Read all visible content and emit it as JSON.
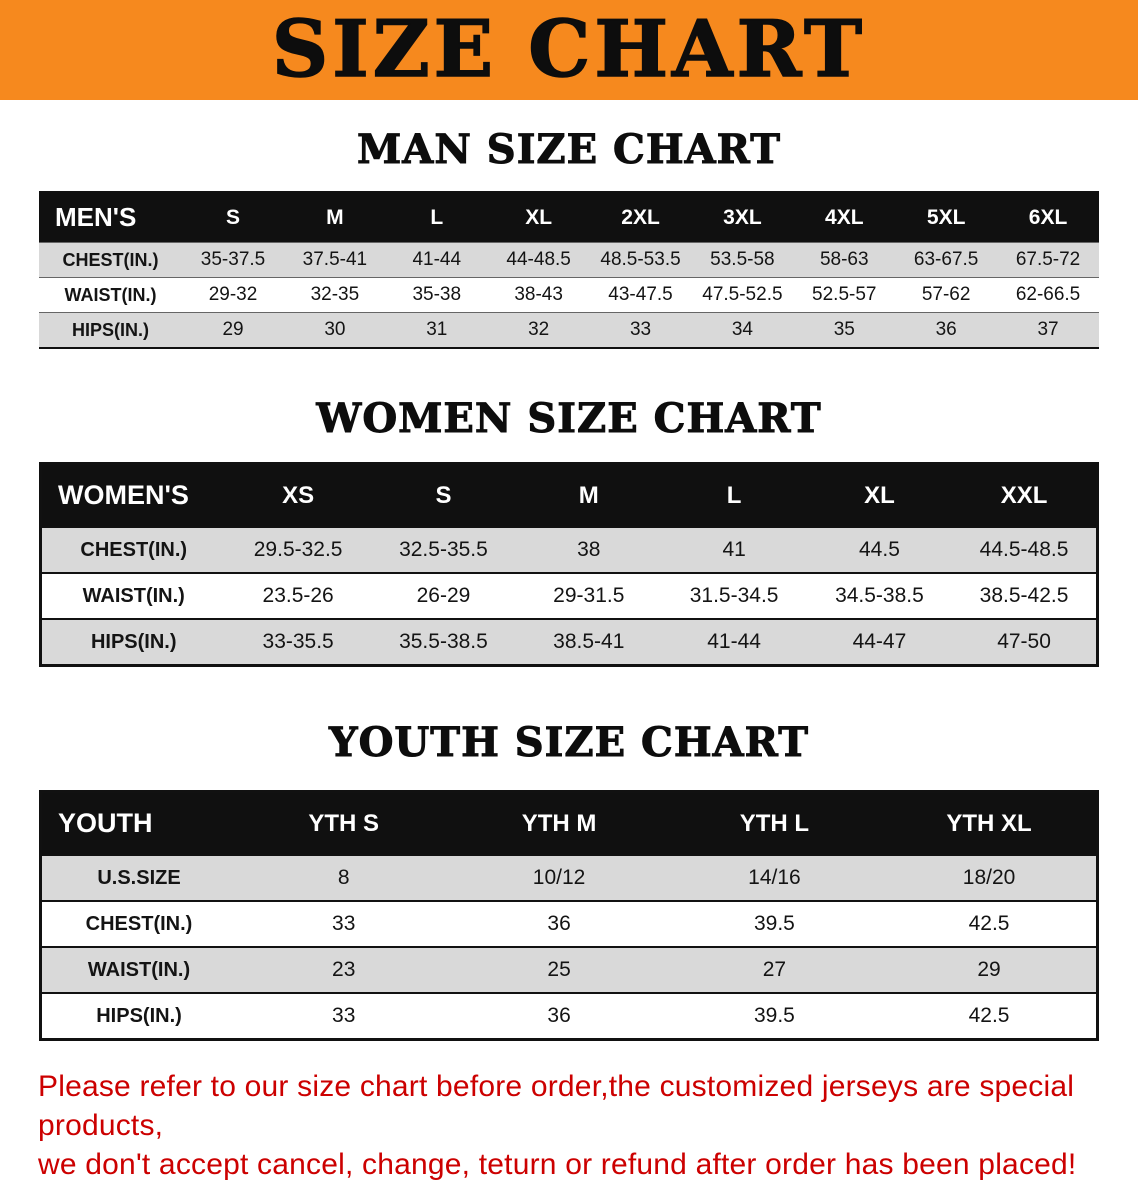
{
  "banner": {
    "title": "SIZE CHART"
  },
  "colors": {
    "banner_bg": "#F6891E",
    "header_bg": "#101010",
    "stripe": "#D9D9D9",
    "disclaimer": "#CC0000"
  },
  "sections": [
    {
      "id": "men",
      "heading": "MAN SIZE CHART",
      "table": {
        "header": [
          "MEN'S",
          "S",
          "M",
          "L",
          "XL",
          "2XL",
          "3XL",
          "4XL",
          "5XL",
          "6XL"
        ],
        "rows": [
          [
            "CHEST(IN.)",
            "35-37.5",
            "37.5-41",
            "41-44",
            "44-48.5",
            "48.5-53.5",
            "53.5-58",
            "58-63",
            "63-67.5",
            "67.5-72"
          ],
          [
            "WAIST(IN.)",
            "29-32",
            "32-35",
            "35-38",
            "38-43",
            "43-47.5",
            "47.5-52.5",
            "52.5-57",
            "57-62",
            "62-66.5"
          ],
          [
            "HIPS(IN.)",
            "29",
            "30",
            "31",
            "32",
            "33",
            "34",
            "35",
            "36",
            "37"
          ]
        ]
      }
    },
    {
      "id": "women",
      "heading": "WOMEN SIZE CHART",
      "table": {
        "header": [
          "WOMEN'S",
          "XS",
          "S",
          "M",
          "L",
          "XL",
          "XXL"
        ],
        "rows": [
          [
            "CHEST(IN.)",
            "29.5-32.5",
            "32.5-35.5",
            "38",
            "41",
            "44.5",
            "44.5-48.5"
          ],
          [
            "WAIST(IN.)",
            "23.5-26",
            "26-29",
            "29-31.5",
            "31.5-34.5",
            "34.5-38.5",
            "38.5-42.5"
          ],
          [
            "HIPS(IN.)",
            "33-35.5",
            "35.5-38.5",
            "38.5-41",
            "41-44",
            "44-47",
            "47-50"
          ]
        ]
      }
    },
    {
      "id": "youth",
      "heading": "YOUTH SIZE CHART",
      "table": {
        "header": [
          "YOUTH",
          "YTH S",
          "YTH M",
          "YTH L",
          "YTH XL"
        ],
        "rows": [
          [
            "U.S.SIZE",
            "8",
            "10/12",
            "14/16",
            "18/20"
          ],
          [
            "CHEST(IN.)",
            "33",
            "36",
            "39.5",
            "42.5"
          ],
          [
            "WAIST(IN.)",
            "23",
            "25",
            "27",
            "29"
          ],
          [
            "HIPS(IN.)",
            "33",
            "36",
            "39.5",
            "42.5"
          ]
        ]
      }
    }
  ],
  "disclaimer": {
    "line1": "Please refer to our size chart before order,the customized jerseys are special products,",
    "line2": "we don't accept cancel, change, teturn or refund after order has been placed!"
  }
}
